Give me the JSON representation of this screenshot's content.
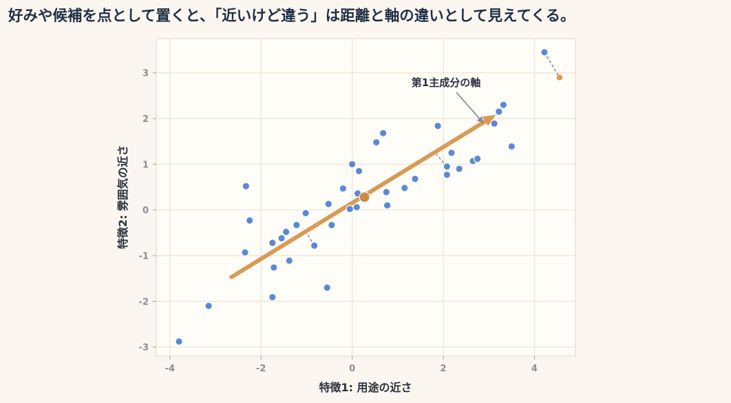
{
  "title": "好みや候補を点として置くと、「近いけど違う」は距離と軸の違いとして見えてくる。",
  "chart_data": {
    "type": "scatter",
    "xlabel": "特徴1: 用途の近さ",
    "ylabel": "特徴2: 雰囲気の近さ",
    "xlim": [
      -4.3,
      4.9
    ],
    "ylim": [
      -3.2,
      3.75
    ],
    "xticks": [
      -4,
      -2,
      0,
      2,
      4
    ],
    "yticks": [
      -3,
      -2,
      -1,
      0,
      1,
      2,
      3
    ],
    "xtick_labels": [
      "-4",
      "-2",
      "0",
      "2",
      "4"
    ],
    "ytick_labels": [
      "-3",
      "-2",
      "-1",
      "0",
      "1",
      "2",
      "3"
    ],
    "grid": true,
    "annotation": "第1主成分の軸",
    "colors": {
      "points": "#5b8ad1",
      "axis": "#d89a55",
      "projection": "#8a8e96"
    },
    "points": [
      {
        "x": -3.8,
        "y": -2.88
      },
      {
        "x": -3.15,
        "y": -2.1
      },
      {
        "x": -2.33,
        "y": 0.52
      },
      {
        "x": -2.25,
        "y": -0.23
      },
      {
        "x": -2.35,
        "y": -0.93
      },
      {
        "x": -1.75,
        "y": -0.72
      },
      {
        "x": -1.72,
        "y": -1.26
      },
      {
        "x": -1.75,
        "y": -1.91
      },
      {
        "x": -1.55,
        "y": -0.62
      },
      {
        "x": -1.45,
        "y": -0.48
      },
      {
        "x": -1.38,
        "y": -1.11
      },
      {
        "x": -1.22,
        "y": -0.33
      },
      {
        "x": -1.02,
        "y": -0.07
      },
      {
        "x": -0.83,
        "y": -0.78
      },
      {
        "x": -0.52,
        "y": 0.13
      },
      {
        "x": -0.45,
        "y": -0.33
      },
      {
        "x": -0.55,
        "y": -1.7
      },
      {
        "x": -0.2,
        "y": 0.47
      },
      {
        "x": -0.05,
        "y": 0.02
      },
      {
        "x": 0.0,
        "y": 1.0
      },
      {
        "x": 0.1,
        "y": 0.06
      },
      {
        "x": 0.12,
        "y": 0.36
      },
      {
        "x": 0.15,
        "y": 0.85
      },
      {
        "x": 0.53,
        "y": 1.48
      },
      {
        "x": 0.68,
        "y": 1.68
      },
      {
        "x": 0.75,
        "y": 0.39
      },
      {
        "x": 0.77,
        "y": 0.1
      },
      {
        "x": 1.15,
        "y": 0.48
      },
      {
        "x": 1.38,
        "y": 0.68
      },
      {
        "x": 1.88,
        "y": 1.84
      },
      {
        "x": 2.08,
        "y": 0.95
      },
      {
        "x": 2.08,
        "y": 0.77
      },
      {
        "x": 2.18,
        "y": 1.25
      },
      {
        "x": 2.35,
        "y": 0.9
      },
      {
        "x": 2.65,
        "y": 1.07
      },
      {
        "x": 2.75,
        "y": 1.12
      },
      {
        "x": 3.12,
        "y": 1.89
      },
      {
        "x": 3.22,
        "y": 2.15
      },
      {
        "x": 3.32,
        "y": 2.3
      },
      {
        "x": 3.5,
        "y": 1.39
      },
      {
        "x": 4.22,
        "y": 3.45
      }
    ],
    "center": {
      "x": 0.27,
      "y": 0.28
    },
    "pc1_axis": {
      "start": {
        "x": -2.65,
        "y": -1.47
      },
      "end": {
        "x": 3.15,
        "y": 2.08
      }
    },
    "projection_lines": [
      {
        "from": {
          "x": 4.22,
          "y": 3.45
        },
        "to": {
          "x": 4.55,
          "y": 2.9
        }
      },
      {
        "from": {
          "x": -0.83,
          "y": -0.78
        },
        "to": {
          "x": -1.03,
          "y": -0.46
        }
      },
      {
        "from": {
          "x": 2.08,
          "y": 0.95
        },
        "to": {
          "x": 1.85,
          "y": 1.22
        }
      }
    ],
    "projected_points": [
      {
        "x": 4.55,
        "y": 2.9
      }
    ]
  }
}
